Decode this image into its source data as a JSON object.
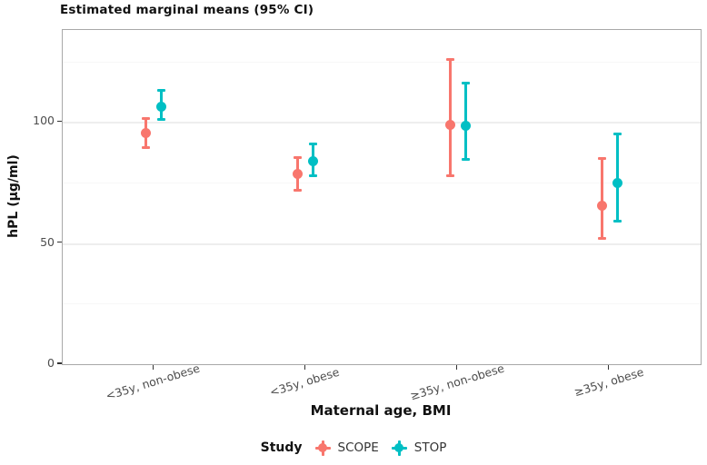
{
  "chart_data": {
    "type": "pointrange",
    "title": "Estimated marginal means (95% CI)",
    "xlabel": "Maternal age, BMI",
    "ylabel": "hPL (µg/ml)",
    "legend_title": "Study",
    "legend_position": "bottom",
    "grid": "on",
    "categories": [
      "<35y, non-obese",
      "<35y, obese",
      "≥35y, non-obese",
      "≥35y, obese"
    ],
    "y_ticks": [
      0,
      50,
      100
    ],
    "y_minor_ticks": [
      25,
      75,
      125
    ],
    "ylim": [
      0,
      138
    ],
    "series": [
      {
        "name": "SCOPE",
        "color": "#F8766D",
        "points": [
          {
            "mean": 95.5,
            "lo": 89.5,
            "hi": 101.5
          },
          {
            "mean": 78.5,
            "lo": 72.0,
            "hi": 85.5
          },
          {
            "mean": 99.0,
            "lo": 78.0,
            "hi": 126.0
          },
          {
            "mean": 65.5,
            "lo": 52.0,
            "hi": 85.0
          }
        ]
      },
      {
        "name": "STOP",
        "color": "#00BFC4",
        "points": [
          {
            "mean": 106.5,
            "lo": 101.0,
            "hi": 113.0
          },
          {
            "mean": 84.0,
            "lo": 78.0,
            "hi": 91.0
          },
          {
            "mean": 98.5,
            "lo": 84.5,
            "hi": 116.0
          },
          {
            "mean": 75.0,
            "lo": 59.0,
            "hi": 95.0
          }
        ]
      }
    ]
  }
}
